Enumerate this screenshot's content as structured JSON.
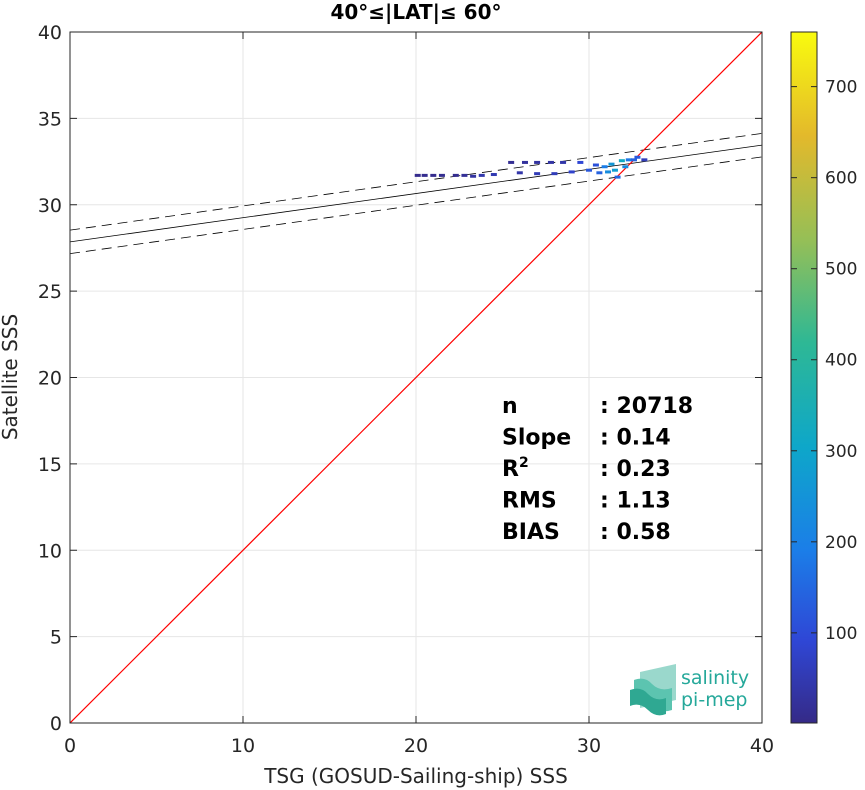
{
  "chart_data": {
    "type": "scatter",
    "title": "40°≤|LAT|≤ 60°",
    "xlabel": "TSG (GOSUD-Sailing-ship) SSS",
    "ylabel": "Satellite SSS",
    "xlim": [
      0,
      40
    ],
    "ylim": [
      0,
      40
    ],
    "xticks": [
      0,
      10,
      20,
      30,
      40
    ],
    "yticks": [
      0,
      5,
      10,
      15,
      20,
      25,
      30,
      35,
      40
    ],
    "grid": true,
    "identity_line": {
      "color": "#ff0000",
      "from": [
        0,
        0
      ],
      "to": [
        40,
        40
      ]
    },
    "regression": {
      "slope": 0.14,
      "intercept": 27.85,
      "band": 0.68,
      "color": "#000000"
    },
    "stats": [
      {
        "label": "n",
        "value": ": 20718"
      },
      {
        "label": "Slope",
        "value": ": 0.14"
      },
      {
        "label": "R",
        "sup": "2",
        "value": ": 0.23"
      },
      {
        "label": "RMS",
        "value": ": 1.13"
      },
      {
        "label": "BIAS",
        "value": ": 0.58"
      }
    ],
    "colorbar": {
      "range": [
        1,
        760
      ],
      "ticks": [
        100,
        200,
        300,
        400,
        500,
        600,
        700
      ],
      "colormap": "parula"
    },
    "density_cells": [
      {
        "x": 20.1,
        "y": 31.7,
        "count": 8
      },
      {
        "x": 20.5,
        "y": 31.7,
        "count": 10
      },
      {
        "x": 21.0,
        "y": 31.7,
        "count": 8
      },
      {
        "x": 21.5,
        "y": 31.7,
        "count": 12
      },
      {
        "x": 22.3,
        "y": 31.7,
        "count": 10
      },
      {
        "x": 22.8,
        "y": 31.7,
        "count": 20
      },
      {
        "x": 23.3,
        "y": 31.65,
        "count": 30
      },
      {
        "x": 23.8,
        "y": 31.7,
        "count": 45
      },
      {
        "x": 24.5,
        "y": 31.75,
        "count": 50
      },
      {
        "x": 25.5,
        "y": 32.45,
        "count": 15
      },
      {
        "x": 26.3,
        "y": 32.45,
        "count": 25
      },
      {
        "x": 27.0,
        "y": 32.45,
        "count": 30
      },
      {
        "x": 27.8,
        "y": 32.45,
        "count": 35
      },
      {
        "x": 28.5,
        "y": 32.45,
        "count": 40
      },
      {
        "x": 26.0,
        "y": 31.85,
        "count": 40
      },
      {
        "x": 27.0,
        "y": 31.8,
        "count": 55
      },
      {
        "x": 28.0,
        "y": 31.8,
        "count": 60
      },
      {
        "x": 29.0,
        "y": 31.9,
        "count": 80
      },
      {
        "x": 29.5,
        "y": 32.45,
        "count": 90
      },
      {
        "x": 30.0,
        "y": 32.0,
        "count": 120
      },
      {
        "x": 30.4,
        "y": 32.3,
        "count": 110
      },
      {
        "x": 30.6,
        "y": 31.85,
        "count": 140
      },
      {
        "x": 30.9,
        "y": 32.2,
        "count": 190
      },
      {
        "x": 31.1,
        "y": 31.9,
        "count": 230
      },
      {
        "x": 31.3,
        "y": 32.35,
        "count": 260
      },
      {
        "x": 31.5,
        "y": 32.0,
        "count": 280
      },
      {
        "x": 31.65,
        "y": 31.6,
        "count": 150
      },
      {
        "x": 31.9,
        "y": 32.55,
        "count": 320
      },
      {
        "x": 32.1,
        "y": 32.2,
        "count": 220
      },
      {
        "x": 32.3,
        "y": 32.6,
        "count": 180
      },
      {
        "x": 32.6,
        "y": 32.6,
        "count": 140
      },
      {
        "x": 32.8,
        "y": 32.75,
        "count": 120
      },
      {
        "x": 33.2,
        "y": 32.6,
        "count": 60
      }
    ]
  },
  "logo": {
    "line1": "salinity",
    "line2": "pi-mep"
  }
}
